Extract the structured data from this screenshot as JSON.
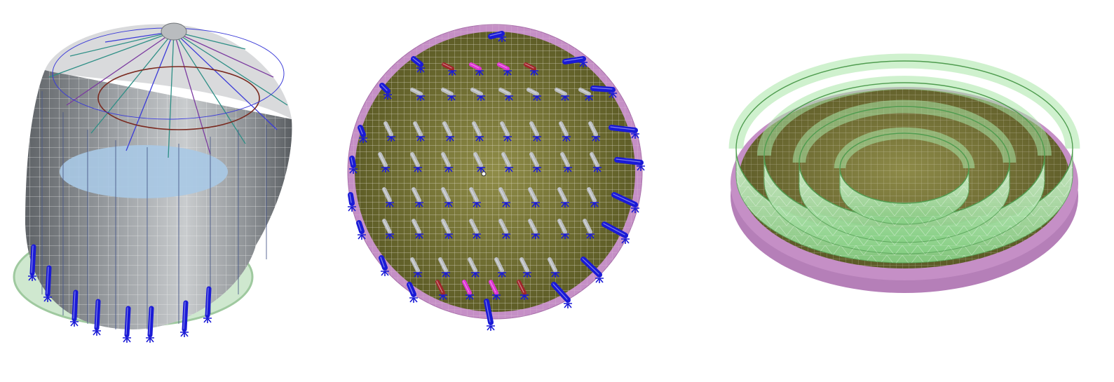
{
  "image": {
    "description_visible_text": [],
    "panels": [
      {
        "id": "silo-structure-model",
        "kind": "cylindrical tank with conical roof, wireframe mesh and blue supports"
      },
      {
        "id": "foundation-slab-model",
        "kind": "circular slab top view with meshed surface and pile supports"
      },
      {
        "id": "concentric-rings-model",
        "kind": "circular base with concentric translucent green ring walls"
      }
    ]
  },
  "colors": {
    "background": "#ffffff",
    "steel_grey": "#b9bcbf",
    "steel_dark": "#6f7377",
    "mesh_white": "#f2f2f2",
    "support_blue": "#1a1ad6",
    "support_blue_light": "#4a4aff",
    "slab_olive": "#6b6a2e",
    "slab_olive_light": "#8f8c48",
    "rim_pink": "#c58fc6",
    "column_red": "#a0252b",
    "column_magenta": "#e033d6",
    "ring_green": "#a8e6a5",
    "ring_green_dark": "#5aa55a",
    "roof_teal": "#2e8f86",
    "roof_purple": "#7b3aa0",
    "roof_dark_red": "#7a2a20",
    "water_blue": "#a9c9e6"
  }
}
